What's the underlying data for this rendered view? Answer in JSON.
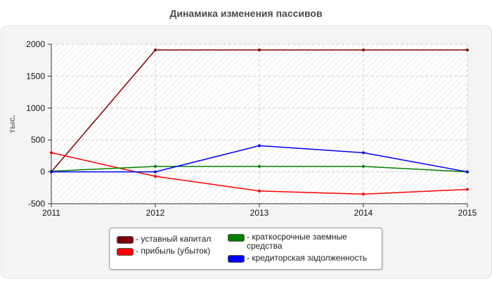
{
  "chart_data": {
    "type": "line",
    "title": "Динамика изменения пассивов",
    "ylabel": "тыс.",
    "xlabel": "",
    "x": [
      2011,
      2012,
      2013,
      2014,
      2015
    ],
    "x_ticks": [
      "2011",
      "2012",
      "2013",
      "2014",
      "2015"
    ],
    "ylim": [
      -500,
      2000
    ],
    "y_ticks": [
      "2000",
      "1500",
      "1000",
      "500",
      "0",
      "-500"
    ],
    "grid": true,
    "legend_position": "bottom",
    "series": [
      {
        "name": "- уставный капитал",
        "color": "#800000",
        "values": [
          0,
          1910,
          1910,
          1910,
          1910
        ]
      },
      {
        "name": "- прибыль (убыток)",
        "color": "#ff0000",
        "values": [
          300,
          -70,
          -300,
          -350,
          -275
        ]
      },
      {
        "name": "- краткосрочные заемные средства",
        "color": "#008000",
        "values": [
          10,
          85,
          85,
          85,
          0
        ]
      },
      {
        "name": "- кредиторская задолженность",
        "color": "#0000ff",
        "values": [
          0,
          0,
          410,
          300,
          0
        ]
      }
    ]
  }
}
